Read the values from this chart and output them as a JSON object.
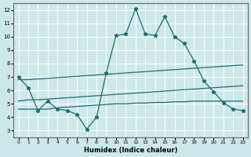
{
  "xlabel": "Humidex (Indice chaleur)",
  "xlim": [
    -0.5,
    23.5
  ],
  "ylim": [
    2.5,
    12.5
  ],
  "xticks": [
    0,
    1,
    2,
    3,
    4,
    5,
    6,
    7,
    8,
    9,
    10,
    11,
    12,
    13,
    14,
    15,
    16,
    17,
    18,
    19,
    20,
    21,
    22,
    23
  ],
  "yticks": [
    3,
    4,
    5,
    6,
    7,
    8,
    9,
    10,
    11,
    12
  ],
  "bg_color": "#cde8e8",
  "grid_color": "#ffffff",
  "line_color": "#1a7070",
  "line1_x": [
    0,
    1,
    2,
    3,
    4,
    5,
    6,
    7,
    8,
    9,
    10,
    11,
    12,
    13,
    14,
    15,
    16,
    17,
    18,
    19,
    20,
    21,
    22,
    23
  ],
  "line1_y": [
    7.0,
    6.2,
    4.5,
    5.2,
    4.6,
    4.5,
    4.2,
    3.1,
    4.0,
    7.3,
    10.1,
    10.2,
    12.1,
    10.2,
    10.1,
    11.5,
    10.0,
    9.5,
    8.2,
    6.7,
    5.9,
    5.1,
    4.6,
    4.5
  ],
  "line2_x": [
    0,
    1,
    2,
    3,
    4,
    5,
    6,
    7,
    8,
    9,
    10,
    11,
    12,
    13,
    14,
    15,
    16,
    17,
    18,
    19,
    20,
    21,
    22,
    23
  ],
  "line2_y": [
    4.6,
    4.6,
    4.6,
    4.6,
    4.7,
    4.75,
    4.8,
    4.85,
    4.9,
    4.95,
    5.0,
    5.0,
    5.05,
    5.05,
    5.1,
    5.1,
    5.15,
    5.15,
    5.2,
    5.2,
    5.2,
    5.2,
    5.2,
    5.2
  ],
  "line3_x": [
    0,
    1,
    2,
    3,
    4,
    5,
    6,
    7,
    8,
    9,
    10,
    11,
    12,
    13,
    14,
    15,
    16,
    17,
    18,
    19,
    20,
    21,
    22,
    23
  ],
  "line3_y": [
    5.2,
    5.3,
    5.3,
    5.35,
    5.4,
    5.45,
    5.5,
    5.55,
    5.6,
    5.65,
    5.7,
    5.75,
    5.8,
    5.85,
    5.9,
    5.95,
    6.0,
    6.05,
    6.1,
    6.15,
    6.2,
    6.25,
    6.3,
    6.35
  ],
  "line4_x": [
    0,
    1,
    2,
    3,
    4,
    5,
    6,
    7,
    8,
    9,
    10,
    11,
    12,
    13,
    14,
    15,
    16,
    17,
    18,
    19,
    20,
    21,
    22,
    23
  ],
  "line4_y": [
    6.8,
    6.8,
    6.85,
    6.9,
    6.95,
    7.0,
    7.05,
    7.1,
    7.15,
    7.2,
    7.25,
    7.3,
    7.35,
    7.4,
    7.45,
    7.5,
    7.55,
    7.6,
    7.65,
    7.7,
    7.75,
    7.8,
    7.85,
    7.9
  ]
}
